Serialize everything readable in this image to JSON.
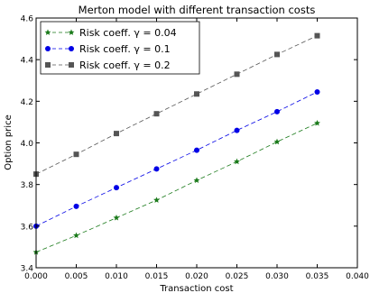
{
  "chart_data": {
    "type": "line",
    "title": "Merton model with different transaction costs",
    "xlabel": "Transaction cost",
    "ylabel": "Option price",
    "xlim": [
      0.0,
      0.04
    ],
    "ylim": [
      3.4,
      4.6
    ],
    "xticks": [
      0.0,
      0.005,
      0.01,
      0.015,
      0.02,
      0.025,
      0.03,
      0.035,
      0.04
    ],
    "xtick_labels": [
      "0.000",
      "0.005",
      "0.010",
      "0.015",
      "0.020",
      "0.025",
      "0.030",
      "0.035",
      "0.040"
    ],
    "yticks": [
      3.4,
      3.6,
      3.8,
      4.0,
      4.2,
      4.4,
      4.6
    ],
    "ytick_labels": [
      "3.4",
      "3.6",
      "3.8",
      "4.0",
      "4.2",
      "4.4",
      "4.6"
    ],
    "grid": false,
    "legend_position": "top-left",
    "x": [
      0.0,
      0.005,
      0.01,
      0.015,
      0.02,
      0.025,
      0.03,
      0.035
    ],
    "series": [
      {
        "name": "Risk coeff. γ = 0.04",
        "values": [
          3.475,
          3.555,
          3.64,
          3.725,
          3.82,
          3.91,
          4.005,
          4.095
        ],
        "color": "#1a7a1a",
        "marker": "star",
        "linestyle": "dashed"
      },
      {
        "name": "Risk coeff. γ = 0.1",
        "values": [
          3.6,
          3.695,
          3.785,
          3.875,
          3.965,
          4.06,
          4.15,
          4.245
        ],
        "color": "#0000e6",
        "marker": "circle",
        "linestyle": "dashed"
      },
      {
        "name": "Risk coeff. γ = 0.2",
        "values": [
          3.85,
          3.945,
          4.045,
          4.14,
          4.235,
          4.33,
          4.425,
          4.515
        ],
        "color": "#555555",
        "marker": "square",
        "linestyle": "dashed"
      }
    ]
  }
}
